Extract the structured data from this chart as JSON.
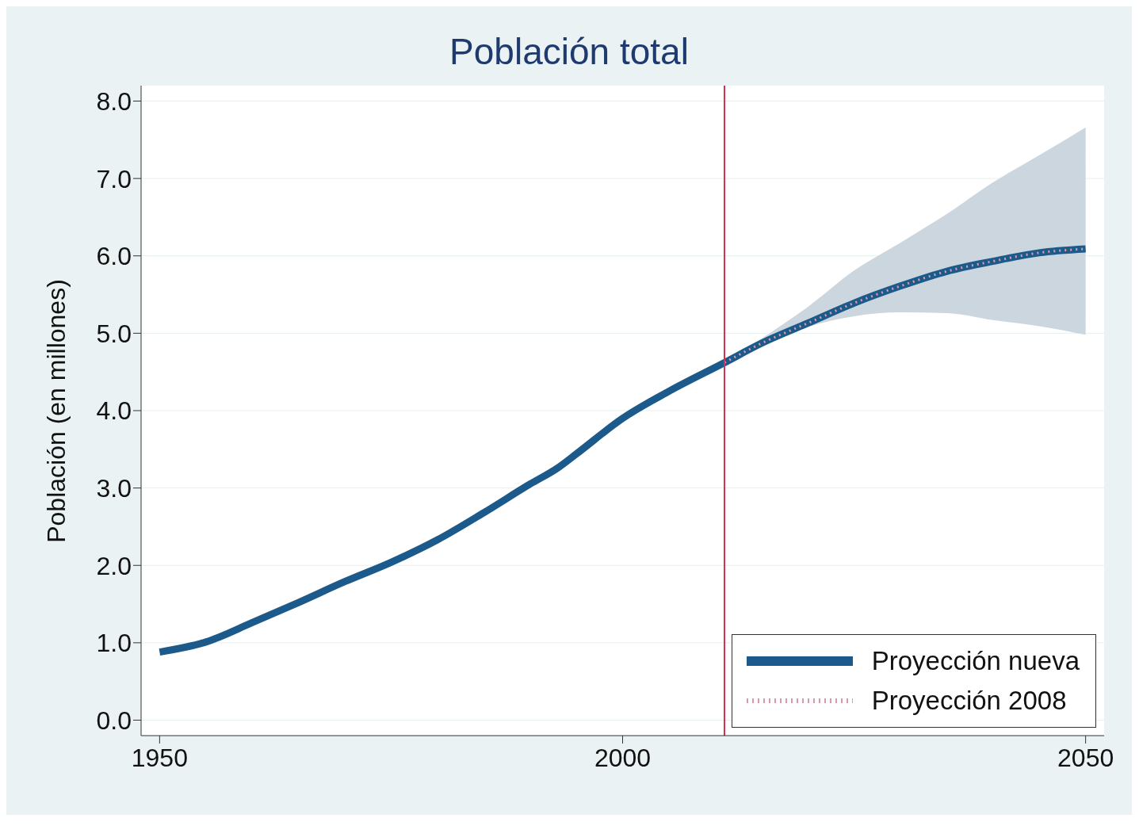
{
  "chart_data": {
    "type": "line",
    "title": "Población total",
    "ylabel": "Población (en millones)",
    "x": [
      1950,
      1955,
      1960,
      1965,
      1970,
      1975,
      1980,
      1985,
      1990,
      1993,
      1995,
      2000,
      2005,
      2011,
      2015,
      2020,
      2025,
      2030,
      2035,
      2040,
      2045,
      2050
    ],
    "series": [
      {
        "name": "Proyección nueva",
        "color": "#1b5a8a",
        "values": [
          0.88,
          1.01,
          1.26,
          1.52,
          1.79,
          2.04,
          2.33,
          2.68,
          3.05,
          3.26,
          3.44,
          3.9,
          4.25,
          4.62,
          4.87,
          5.13,
          5.39,
          5.61,
          5.8,
          5.93,
          6.04,
          6.09
        ],
        "lower": [
          null,
          null,
          null,
          null,
          null,
          null,
          null,
          null,
          null,
          null,
          null,
          null,
          null,
          4.62,
          4.83,
          5.08,
          5.22,
          5.27,
          5.26,
          5.17,
          5.09,
          4.98
        ],
        "upper": [
          null,
          null,
          null,
          null,
          null,
          null,
          null,
          null,
          null,
          null,
          null,
          null,
          null,
          4.62,
          4.93,
          5.34,
          5.81,
          6.17,
          6.54,
          6.95,
          7.3,
          7.66
        ]
      },
      {
        "name": "Proyección 2008",
        "color": "#d99aaa",
        "line_style": "dotted",
        "values": [
          null,
          null,
          null,
          null,
          null,
          null,
          null,
          null,
          null,
          null,
          null,
          null,
          null,
          4.62,
          4.87,
          5.13,
          5.39,
          5.61,
          5.8,
          5.93,
          6.04,
          6.09
        ]
      }
    ],
    "xlim": [
      1948,
      2052
    ],
    "xticks": [
      1950,
      2000,
      2050
    ],
    "ylim": [
      -0.2,
      8.2
    ],
    "yticks": [
      {
        "value": 0,
        "label": "0.0"
      },
      {
        "value": 1,
        "label": "1.0"
      },
      {
        "value": 2,
        "label": "2.0"
      },
      {
        "value": 3,
        "label": "3.0"
      },
      {
        "value": 4,
        "label": "4.0"
      },
      {
        "value": 5,
        "label": "5.0"
      },
      {
        "value": 6,
        "label": "6.0"
      },
      {
        "value": 7,
        "label": "7.0"
      },
      {
        "value": 8,
        "label": "8.0"
      }
    ],
    "ref_lines": [
      {
        "axis": "x",
        "value": 2011,
        "color": "#d6304f"
      }
    ],
    "grid": "y",
    "legend": "bottom right",
    "marker": "none",
    "line_style": "solid"
  }
}
